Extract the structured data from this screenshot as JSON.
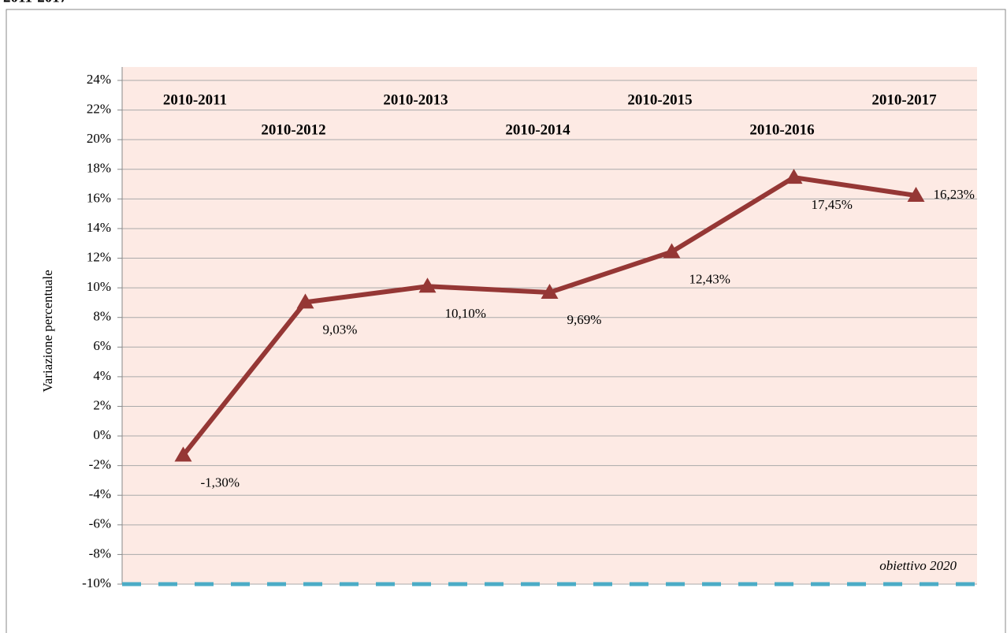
{
  "header": "2011-2017",
  "chart_data": {
    "type": "line",
    "y_label": "Variazione percentuale",
    "categories": [
      "2010-2011",
      "2010-2012",
      "2010-2013",
      "2010-2014",
      "2010-2015",
      "2010-2016",
      "2010-2017"
    ],
    "series": [
      {
        "name": "Variazione percentuale",
        "color": "#953735",
        "values": [
          -1.3,
          9.03,
          10.1,
          9.69,
          12.43,
          17.45,
          16.23
        ],
        "value_labels": [
          "-1,30%",
          "9,03%",
          "10,10%",
          "9,69%",
          "12,43%",
          "17,45%",
          "16,23%"
        ]
      }
    ],
    "target": {
      "value": -10,
      "label": "obiettivo  2020",
      "color": "#4bacc6"
    },
    "ylim": [
      -10,
      24
    ],
    "yticks": [
      {
        "value": -10,
        "label": "-10%"
      },
      {
        "value": -8,
        "label": "-8%"
      },
      {
        "value": -6,
        "label": "-6%"
      },
      {
        "value": -4,
        "label": "-4%"
      },
      {
        "value": -2,
        "label": "-2%"
      },
      {
        "value": 0,
        "label": "0%"
      },
      {
        "value": 2,
        "label": "2%"
      },
      {
        "value": 4,
        "label": "4%"
      },
      {
        "value": 6,
        "label": "6%"
      },
      {
        "value": 8,
        "label": "8%"
      },
      {
        "value": 10,
        "label": "10%"
      },
      {
        "value": 12,
        "label": "12%"
      },
      {
        "value": 14,
        "label": "14%"
      },
      {
        "value": 16,
        "label": "16%"
      },
      {
        "value": 18,
        "label": "18%"
      },
      {
        "value": 20,
        "label": "20%"
      },
      {
        "value": 22,
        "label": "22%"
      },
      {
        "value": 24,
        "label": "24%"
      }
    ],
    "grid": true
  }
}
